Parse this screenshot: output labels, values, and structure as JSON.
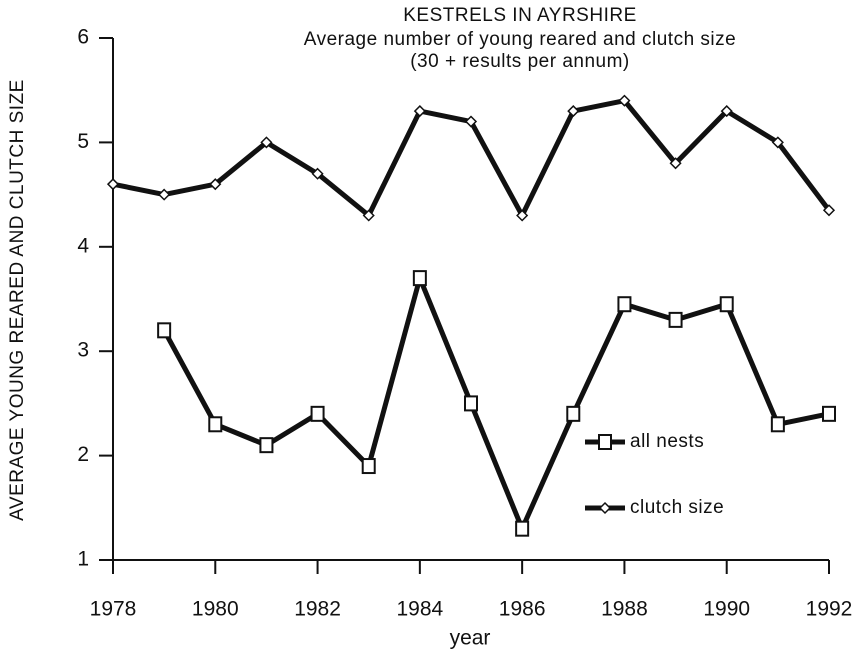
{
  "chart_data": {
    "type": "line",
    "title": "KESTRELS IN AYRSHIRE",
    "subtitle": "Average number of young reared and clutch size",
    "note": "(30 + results per annum)",
    "x_label": "year",
    "y_label": "AVERAGE YOUNG REARED AND CLUTCH SIZE",
    "x": [
      1978,
      1979,
      1980,
      1981,
      1982,
      1983,
      1984,
      1985,
      1986,
      1987,
      1988,
      1989,
      1990,
      1991,
      1992
    ],
    "series": [
      {
        "name": "all nests",
        "color": "#111111",
        "marker": "square",
        "values": [
          null,
          3.2,
          2.3,
          2.1,
          2.4,
          1.9,
          3.7,
          2.5,
          1.3,
          2.4,
          3.45,
          3.3,
          3.45,
          2.3,
          2.4
        ]
      },
      {
        "name": "clutch size",
        "color": "#111111",
        "marker": "diamond",
        "values": [
          4.6,
          4.5,
          4.6,
          5.0,
          4.7,
          4.3,
          5.3,
          5.2,
          4.3,
          5.3,
          5.4,
          4.8,
          5.3,
          5.0,
          4.35
        ]
      }
    ],
    "xlim": [
      1978,
      1992
    ],
    "xticks": [
      1978,
      1980,
      1982,
      1984,
      1986,
      1988,
      1990,
      1992
    ],
    "ylim": [
      1,
      6
    ],
    "yticks": [
      1,
      2,
      3,
      4,
      5,
      6
    ],
    "grid": false
  }
}
